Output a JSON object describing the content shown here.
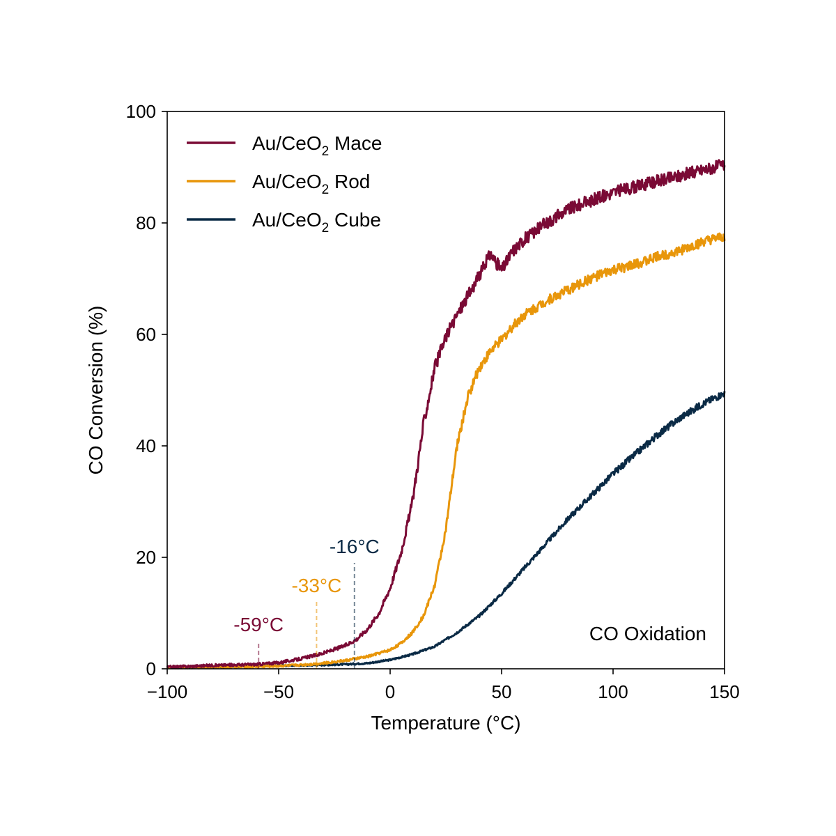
{
  "chart_data": {
    "type": "line",
    "title": "",
    "xlabel": "Temperature (°C)",
    "ylabel": "CO Conversion (%)",
    "xlim": [
      -100,
      150
    ],
    "ylim": [
      0,
      100
    ],
    "xticks": [
      -100,
      -50,
      0,
      50,
      100,
      150
    ],
    "xtick_labels": [
      "−100",
      "−50",
      "0",
      "50",
      "100",
      "150"
    ],
    "yticks": [
      0,
      20,
      40,
      60,
      80,
      100
    ],
    "ytick_labels": [
      "0",
      "20",
      "40",
      "60",
      "80",
      "100"
    ],
    "grid": false,
    "legend_position": "top-left",
    "series": [
      {
        "key": "mace",
        "name_prefix": "Au/CeO",
        "name_subscript": "2",
        "name_suffix": " Mace",
        "color": "#7a0a35",
        "noise": 0.9,
        "x": [
          -100,
          -80,
          -60,
          -50,
          -40,
          -30,
          -20,
          -15,
          -10,
          -5,
          0,
          5,
          10,
          15,
          20,
          25,
          30,
          35,
          40,
          45,
          50,
          55,
          60,
          70,
          80,
          90,
          100,
          110,
          120,
          130,
          140,
          150
        ],
        "y": [
          0.3,
          0.6,
          0.8,
          1.1,
          1.8,
          2.8,
          4.2,
          5.3,
          7.2,
          10,
          14.5,
          21,
          30,
          44,
          54,
          59.5,
          63.5,
          67,
          70.5,
          74.5,
          71.5,
          75,
          77,
          80,
          82.5,
          84,
          85.5,
          86.5,
          87.5,
          88.5,
          89.5,
          90.5
        ]
      },
      {
        "key": "rod",
        "name_prefix": "Au/CeO",
        "name_subscript": "2",
        "name_suffix": " Rod",
        "color": "#e8960a",
        "noise": 0.7,
        "x": [
          -100,
          -80,
          -60,
          -50,
          -40,
          -30,
          -20,
          -10,
          0,
          5,
          10,
          15,
          20,
          25,
          30,
          35,
          40,
          45,
          50,
          55,
          60,
          70,
          80,
          90,
          100,
          110,
          120,
          130,
          140,
          150
        ],
        "y": [
          0.2,
          0.3,
          0.4,
          0.5,
          0.7,
          1.0,
          1.5,
          2.2,
          3.4,
          4.6,
          6.5,
          9.5,
          15,
          25,
          40,
          49,
          54,
          57,
          59,
          61.5,
          63.5,
          66,
          68,
          70,
          71.5,
          72.5,
          74,
          75,
          76.5,
          77.5
        ]
      },
      {
        "key": "cube",
        "name_prefix": "Au/CeO",
        "name_subscript": "2",
        "name_suffix": " Cube",
        "color": "#0a2a45",
        "noise": 0.5,
        "x": [
          -100,
          -80,
          -60,
          -40,
          -20,
          -10,
          0,
          10,
          20,
          30,
          40,
          50,
          60,
          70,
          80,
          90,
          100,
          110,
          120,
          130,
          140,
          150
        ],
        "y": [
          0.2,
          0.3,
          0.5,
          0.6,
          0.8,
          1.0,
          1.6,
          2.6,
          4.0,
          6.5,
          9.5,
          13.5,
          18,
          22.5,
          27,
          31,
          35,
          38.5,
          42,
          45,
          47.5,
          49.5
        ]
      }
    ],
    "markers": [
      {
        "key": "mace",
        "x": -59,
        "y_top": 5,
        "label": "-59°C",
        "color": "#7a0a35"
      },
      {
        "key": "rod",
        "x": -33,
        "y_top": 12,
        "label": "-33°C",
        "color": "#e8960a"
      },
      {
        "key": "cube",
        "x": -16,
        "y_top": 19,
        "label": "-16°C",
        "color": "#0a2a45"
      }
    ],
    "annotation": "CO Oxidation"
  }
}
